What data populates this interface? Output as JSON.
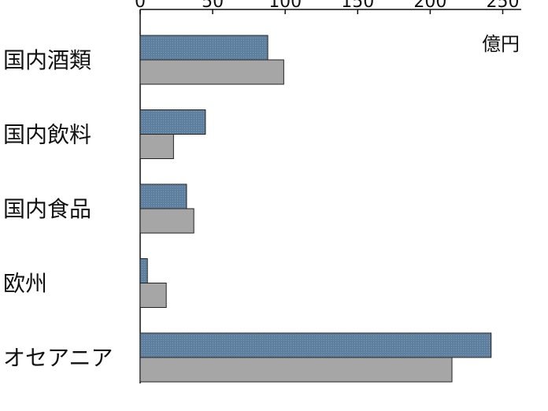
{
  "chart_data": {
    "type": "bar",
    "orientation": "horizontal",
    "unit": "億円",
    "categories": [
      "国内酒類",
      "国内飲料",
      "国内食品",
      "欧州",
      "オセアニア"
    ],
    "series": [
      {
        "values": [
          88,
          45,
          32,
          5,
          242
        ],
        "color": "#5f7f9e"
      },
      {
        "values": [
          99,
          23,
          37,
          18,
          215
        ],
        "color": "#a6a6a6"
      }
    ],
    "xlim": [
      0,
      260
    ],
    "xticks": [
      0,
      50,
      100,
      150,
      200,
      250
    ],
    "grid": false,
    "legend": "none"
  }
}
